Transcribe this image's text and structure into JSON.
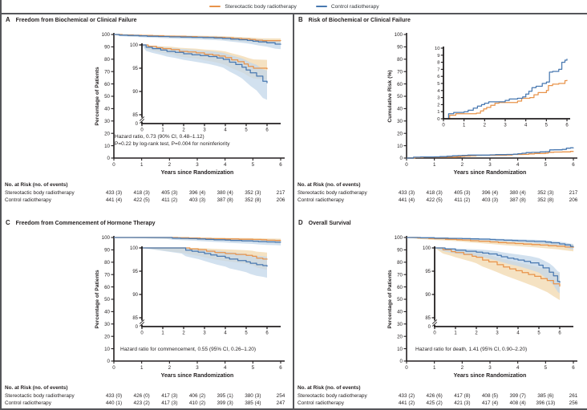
{
  "risk_header": "No. at Risk (no. of events)",
  "legend": {
    "position": "top",
    "items": [
      {
        "label": "Stereotactic body radiotherapy",
        "color": "#E8934A"
      },
      {
        "label": "Control radiotherapy",
        "color": "#4878B0"
      }
    ]
  },
  "axis": {
    "x_label": "Years since Randomization",
    "x_ticks": [
      0,
      1,
      2,
      3,
      4,
      5,
      6
    ]
  },
  "panels": [
    {
      "letter": "A",
      "annotation_line1": "Hazard ratio, 0.73 (90% CI, 0.48–1.12)",
      "annotation_line2": "P=0.22 by log-rank test, P=0.004 for noninferiority",
      "risk_table": {
        "rows": [
          {
            "label": "Stereotactic body radiotherapy",
            "values": [
              "433 (3)",
              "418 (3)",
              "405 (3)",
              "396 (4)",
              "380 (4)",
              "352 (3)",
              "217"
            ]
          },
          {
            "label": "Control radiotherapy",
            "values": [
              "441 (4)",
              "422 (5)",
              "411 (2)",
              "403 (3)",
              "387 (8)",
              "352 (8)",
              "206"
            ]
          }
        ]
      }
    },
    {
      "letter": "B",
      "risk_table": {
        "rows": [
          {
            "label": "Stereotactic body radiotherapy",
            "values": [
              "433 (3)",
              "418 (3)",
              "405 (3)",
              "396 (4)",
              "380 (4)",
              "352 (3)",
              "217"
            ]
          },
          {
            "label": "Control radiotherapy",
            "values": [
              "441 (4)",
              "422 (5)",
              "411 (2)",
              "403 (3)",
              "387 (8)",
              "352 (8)",
              "206"
            ]
          }
        ]
      }
    },
    {
      "letter": "C",
      "annotation_line1": "Hazard ratio for commencement, 0.55 (95% CI, 0.26–1.20)",
      "risk_table": {
        "rows": [
          {
            "label": "Stereotactic body radiotherapy",
            "values": [
              "433 (0)",
              "426 (0)",
              "417 (3)",
              "406 (2)",
              "395 (1)",
              "380 (3)",
              "254"
            ]
          },
          {
            "label": "Control radiotherapy",
            "values": [
              "440 (1)",
              "423 (2)",
              "417 (3)",
              "410 (2)",
              "399 (3)",
              "385 (4)",
              "247"
            ]
          }
        ]
      }
    },
    {
      "letter": "D",
      "annotation_line1": "Hazard ratio for death, 1.41 (95% CI, 0.90–2.20)",
      "risk_table": {
        "rows": [
          {
            "label": "Stereotactic body radiotherapy",
            "values": [
              "433 (2)",
              "426 (6)",
              "417 (8)",
              "408 (5)",
              "399 (7)",
              "385 (6)",
              "261"
            ]
          },
          {
            "label": "Control radiotherapy",
            "values": [
              "441 (2)",
              "425 (2)",
              "421 (3)",
              "417 (4)",
              "408 (4)",
              "396 (13)",
              "256"
            ]
          }
        ]
      }
    }
  ],
  "chart_data": [
    {
      "type": "line",
      "panel": "A",
      "title": "Freedom from Biochemical or Clinical Failure",
      "xlabel": "Years since Randomization",
      "ylabel": "Percentage of Patients",
      "xlim": [
        0,
        6
      ],
      "ylim": [
        0,
        100
      ],
      "xticks": [
        0,
        1,
        2,
        3,
        4,
        5,
        6
      ],
      "yticks": [
        0,
        10,
        20,
        30,
        40,
        50,
        60,
        70,
        80,
        90,
        100
      ],
      "grid": false,
      "legend_position": "top-shared",
      "inset": {
        "broken_axis": true,
        "ylim": [
          85,
          100
        ],
        "yticks": [
          100,
          95,
          90,
          85
        ],
        "zero_label": "0",
        "xticks": [
          0,
          1,
          2,
          3,
          4,
          5,
          6
        ]
      },
      "series": [
        {
          "name": "Stereotactic body radiotherapy",
          "color": "#E8934A",
          "band": "#F2D8AE",
          "x": [
            0,
            0.3,
            0.7,
            1,
            1.4,
            1.8,
            2.2,
            2.6,
            3,
            3.4,
            3.7,
            4,
            4.3,
            4.6,
            4.9,
            5.1,
            5.35,
            6
          ],
          "y": [
            100,
            99.7,
            99.4,
            99.2,
            99,
            98.6,
            98.5,
            98.3,
            98,
            97.8,
            97.6,
            97.3,
            96.8,
            96.4,
            95.9,
            95.4,
            95,
            94.8
          ],
          "ci_lower": [
            100,
            99,
            98.6,
            98.3,
            98,
            97.5,
            97.3,
            97.1,
            96.7,
            96.4,
            96.1,
            95.7,
            95,
            94.5,
            93.9,
            93.3,
            92.8,
            92.5
          ],
          "ci_upper": [
            100,
            99.9,
            99.8,
            99.7,
            99.6,
            99.4,
            99.3,
            99.2,
            99,
            98.9,
            98.8,
            98.6,
            98.2,
            97.9,
            97.5,
            97.2,
            96.9,
            96.8
          ]
        },
        {
          "name": "Control radiotherapy",
          "color": "#4878B0",
          "band": "#C3D7E9",
          "x": [
            0,
            0.2,
            0.5,
            0.9,
            1.2,
            1.6,
            2,
            2.4,
            2.8,
            3.2,
            3.6,
            3.9,
            4.2,
            4.5,
            4.8,
            5,
            5.2,
            5.5,
            5.8,
            6
          ],
          "y": [
            100,
            99.5,
            99.2,
            98.9,
            98.6,
            98.4,
            98.1,
            97.9,
            97.7,
            97.5,
            97.2,
            96.9,
            96.3,
            95.8,
            95.2,
            94.6,
            94,
            93.3,
            92.2,
            91.8
          ],
          "ci_lower": [
            100,
            98.7,
            98.3,
            97.9,
            97.5,
            97.2,
            96.8,
            96.5,
            96.2,
            95.9,
            95.5,
            95.1,
            94.3,
            93.6,
            92.8,
            92,
            91.2,
            90.2,
            88.6,
            88.2
          ],
          "ci_upper": [
            100,
            99.9,
            99.8,
            99.6,
            99.4,
            99.3,
            99.1,
            99,
            98.8,
            98.7,
            98.5,
            98.3,
            97.9,
            97.5,
            97.1,
            96.7,
            96.2,
            95.7,
            94.8,
            94.5
          ]
        }
      ]
    },
    {
      "type": "line",
      "panel": "B",
      "title": "Risk of Biochemical or Clinical Failure",
      "xlabel": "Years since Randomization",
      "ylabel": "Cumulative Risk (%)",
      "xlim": [
        0,
        6
      ],
      "ylim": [
        0,
        100
      ],
      "xticks": [
        0,
        1,
        2,
        3,
        4,
        5,
        6
      ],
      "yticks": [
        0,
        10,
        20,
        30,
        40,
        50,
        60,
        70,
        80,
        90,
        100
      ],
      "grid": false,
      "legend_position": "top-shared",
      "inset": {
        "broken_axis": false,
        "ylim": [
          0,
          10
        ],
        "yticks": [
          10,
          9,
          8,
          7,
          6,
          5,
          4,
          3,
          2,
          1,
          0
        ],
        "xticks": [
          0,
          1,
          2,
          3,
          4,
          5,
          6
        ]
      },
      "series": [
        {
          "name": "Stereotactic body radiotherapy",
          "color": "#E8934A",
          "band": "#F2D8AE",
          "x": [
            0,
            0.3,
            0.6,
            1.6,
            1.8,
            1.95,
            2.1,
            2.3,
            2.5,
            2.7,
            3.4,
            3.6,
            3.8,
            4.2,
            4.4,
            4.6,
            5,
            5.1,
            5.3,
            5.6,
            5.9,
            6
          ],
          "y": [
            0,
            0.5,
            0.7,
            0.8,
            1.1,
            1.4,
            1.6,
            1.9,
            2.2,
            2.3,
            2.3,
            2.5,
            2.9,
            3,
            3.4,
            3.7,
            4,
            4.7,
            4.9,
            5,
            5.4,
            5.5
          ]
        },
        {
          "name": "Control radiotherapy",
          "color": "#4878B0",
          "band": "#C3D7E9",
          "x": [
            0,
            0.25,
            0.5,
            1,
            1.2,
            1.45,
            1.65,
            1.85,
            2,
            2.2,
            2.6,
            3,
            3.2,
            3.6,
            3.85,
            4,
            4.15,
            4.3,
            4.5,
            4.8,
            5,
            5.15,
            5.3,
            5.6,
            5.75,
            5.9,
            6
          ],
          "y": [
            0,
            0.7,
            0.9,
            1,
            1.2,
            1.5,
            1.8,
            2,
            2.2,
            2.4,
            2.4,
            2.6,
            2.8,
            2.9,
            3.1,
            3.5,
            3.9,
            4.4,
            4.6,
            5,
            5.2,
            6.6,
            6.7,
            7,
            8,
            8.3,
            8.5
          ]
        }
      ]
    },
    {
      "type": "line",
      "panel": "C",
      "title": "Freedom from Commencement of Hormone Therapy",
      "xlabel": "Years since Randomization",
      "ylabel": "Percentage of Patients",
      "xlim": [
        0,
        6
      ],
      "ylim": [
        0,
        100
      ],
      "xticks": [
        0,
        1,
        2,
        3,
        4,
        5,
        6
      ],
      "yticks": [
        0,
        10,
        20,
        30,
        40,
        50,
        60,
        70,
        80,
        90,
        100
      ],
      "grid": false,
      "legend_position": "top-shared",
      "inset": {
        "broken_axis": true,
        "ylim": [
          85,
          100
        ],
        "yticks": [
          100,
          95,
          90,
          85
        ],
        "zero_label": "0",
        "xticks": [
          0,
          1,
          2,
          3,
          4,
          5,
          6
        ]
      },
      "series": [
        {
          "name": "Stereotactic body radiotherapy",
          "color": "#E8934A",
          "band": "#F2D8AE",
          "x": [
            0,
            2,
            2.3,
            2.7,
            3.1,
            3.5,
            4,
            4.5,
            5,
            5.3,
            5.5,
            5.8,
            6
          ],
          "y": [
            100,
            100,
            99.8,
            99.6,
            99.3,
            99,
            98.8,
            98.6,
            98.4,
            98.2,
            97.8,
            97.6,
            97.5
          ],
          "ci_lower": [
            100,
            98.9,
            98.6,
            98.3,
            97.9,
            97.5,
            97.2,
            96.9,
            96.6,
            96.3,
            95.8,
            95.5,
            95.3
          ],
          "ci_upper": [
            100,
            100,
            100,
            100,
            99.9,
            99.8,
            99.7,
            99.6,
            99.5,
            99.4,
            99.2,
            99.1,
            99
          ]
        },
        {
          "name": "Control radiotherapy",
          "color": "#4878B0",
          "band": "#C3D7E9",
          "x": [
            0,
            1.9,
            2.1,
            2.4,
            2.7,
            3,
            3.3,
            3.6,
            4,
            4.2,
            4.6,
            5,
            5.2,
            5.5,
            5.8,
            6
          ],
          "y": [
            100,
            100,
            99.5,
            99.3,
            99.1,
            98.8,
            98.5,
            98.2,
            97.9,
            97.6,
            97.3,
            97,
            96.7,
            96.4,
            96.2,
            96
          ],
          "ci_lower": [
            100,
            98.8,
            98.2,
            97.9,
            97.6,
            97.2,
            96.8,
            96.4,
            96,
            95.6,
            95.2,
            94.8,
            94.4,
            94,
            93.8,
            93.6
          ],
          "ci_upper": [
            100,
            100,
            100,
            99.9,
            99.8,
            99.7,
            99.5,
            99.4,
            99.2,
            99.1,
            98.9,
            98.7,
            98.5,
            98.3,
            98.2,
            98.1
          ]
        }
      ]
    },
    {
      "type": "line",
      "panel": "D",
      "title": "Overall Survival",
      "xlabel": "Years since Randomization",
      "ylabel": "Percentage of Patients",
      "xlim": [
        0,
        6
      ],
      "ylim": [
        0,
        100
      ],
      "xticks": [
        0,
        1,
        2,
        3,
        4,
        5,
        6
      ],
      "yticks": [
        0,
        10,
        20,
        30,
        40,
        50,
        60,
        70,
        80,
        90,
        100
      ],
      "grid": false,
      "legend_position": "top-shared",
      "inset": {
        "broken_axis": true,
        "ylim": [
          85,
          100
        ],
        "yticks": [
          100,
          95,
          90,
          85
        ],
        "zero_label": "0",
        "xticks": [
          0,
          1,
          2,
          3,
          4,
          5,
          6
        ]
      },
      "series": [
        {
          "name": "Stereotactic body radiotherapy",
          "color": "#E8934A",
          "band": "#F2D8AE",
          "x": [
            0,
            0.4,
            0.8,
            1,
            1.4,
            1.8,
            2,
            2.3,
            2.6,
            3,
            3.3,
            3.6,
            3.9,
            4.2,
            4.5,
            4.8,
            5.1,
            5.4,
            5.7,
            6
          ],
          "y": [
            100,
            99.6,
            99.2,
            99,
            98.6,
            98.2,
            98,
            97.4,
            97,
            96.4,
            95.9,
            95.5,
            95.1,
            94.7,
            94.3,
            93.9,
            93.4,
            93,
            92.3,
            91.7
          ],
          "ci_lower": [
            100,
            98.8,
            98.3,
            98,
            97.5,
            97,
            96.7,
            96,
            95.5,
            94.8,
            94.2,
            93.7,
            93.2,
            92.7,
            92.2,
            91.7,
            91.1,
            90.5,
            89.6,
            88.8
          ],
          "ci_upper": [
            100,
            99.9,
            99.8,
            99.7,
            99.5,
            99.3,
            99.2,
            98.8,
            98.5,
            98,
            97.6,
            97.3,
            97,
            96.7,
            96.4,
            96.1,
            95.7,
            95.4,
            94.9,
            94.5
          ]
        },
        {
          "name": "Control radiotherapy",
          "color": "#4878B0",
          "band": "#C3D7E9",
          "x": [
            0,
            0.5,
            1,
            1.5,
            2,
            2.3,
            2.6,
            3,
            3.2,
            3.5,
            3.8,
            4,
            4.3,
            4.6,
            5,
            5.2,
            5.5,
            5.7,
            5.9,
            6
          ],
          "y": [
            100,
            99.8,
            99.5,
            99.3,
            99.1,
            98.9,
            98.7,
            98.4,
            98.1,
            97.8,
            97.6,
            97.4,
            97.1,
            96.8,
            96.3,
            95.7,
            94.8,
            94,
            92.8,
            92.5
          ],
          "ci_lower": [
            100,
            99.2,
            98.8,
            98.5,
            98.2,
            98,
            97.7,
            97.3,
            97,
            96.6,
            96.3,
            96.1,
            95.7,
            95.3,
            94.7,
            94,
            92.9,
            92,
            90.6,
            90.2
          ],
          "ci_upper": [
            100,
            100,
            99.9,
            99.8,
            99.7,
            99.6,
            99.5,
            99.3,
            99.1,
            98.9,
            98.7,
            98.6,
            98.4,
            98.2,
            97.8,
            97.4,
            96.7,
            96,
            95,
            94.8
          ]
        }
      ]
    }
  ]
}
